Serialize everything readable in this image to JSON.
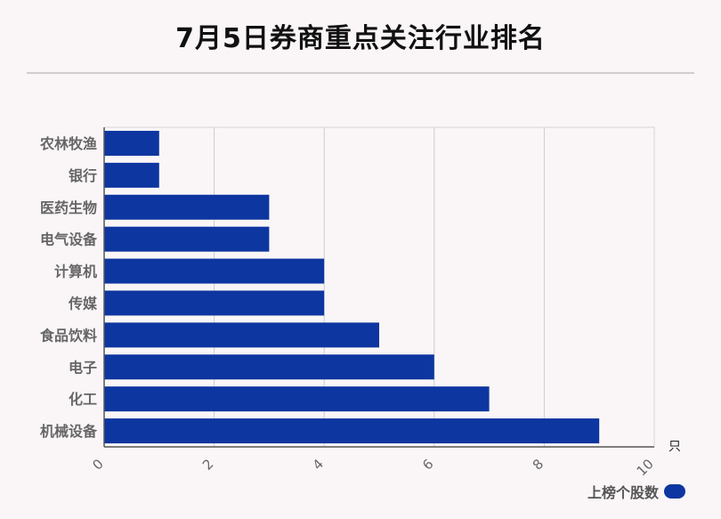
{
  "title": "7月5日券商重点关注行业排名",
  "colors": {
    "bar": "#0e36a0",
    "axis_text": "#666666",
    "grid": "#cccccc"
  },
  "legend": {
    "label": "上榜个股数"
  },
  "chart_data": {
    "type": "bar",
    "orientation": "horizontal",
    "title": "7月5日券商重点关注行业排名",
    "categories": [
      "农林牧渔",
      "银行",
      "医药生物",
      "电气设备",
      "计算机",
      "传媒",
      "食品饮料",
      "电子",
      "化工",
      "机械设备"
    ],
    "series": [
      {
        "name": "上榜个股数",
        "values": [
          1,
          1,
          3,
          3,
          4,
          4,
          5,
          6,
          7,
          9
        ]
      }
    ],
    "xlim": [
      0,
      10
    ],
    "xticks": [
      "0",
      "2",
      "4",
      "6",
      "8",
      "10"
    ],
    "xunit": "只",
    "grid": true,
    "legend_position": "bottom-right"
  }
}
